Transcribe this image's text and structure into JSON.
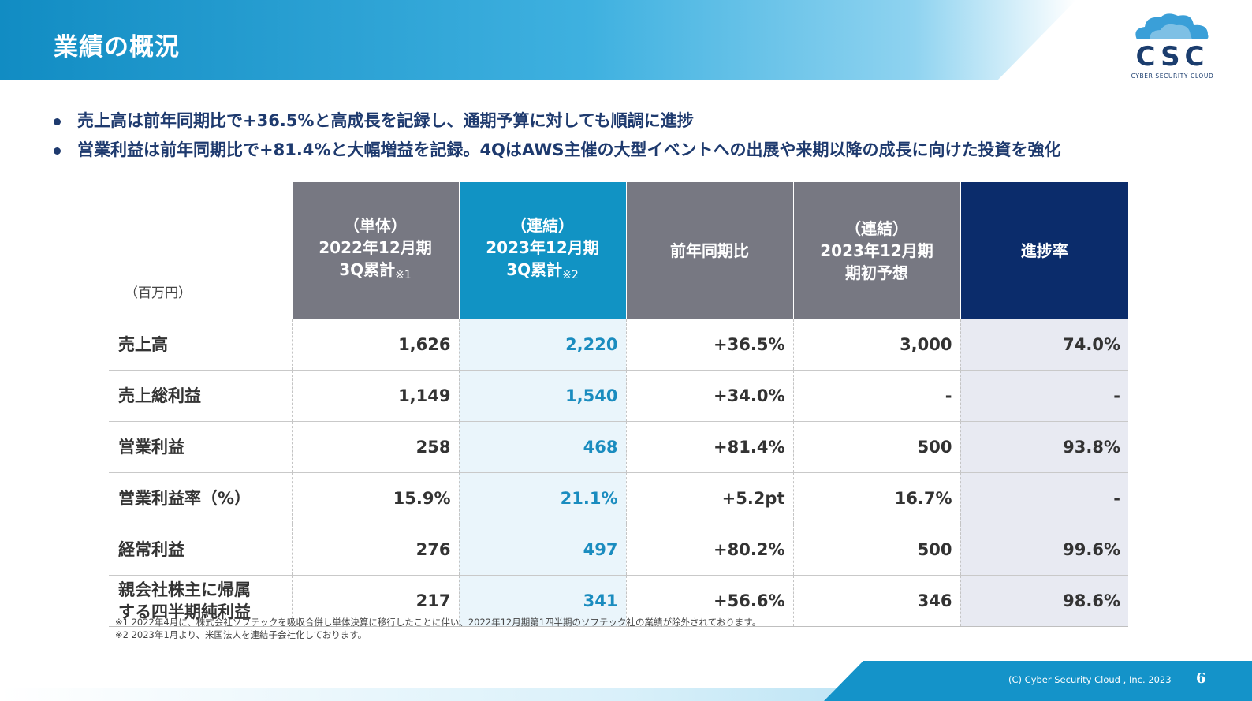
{
  "header": {
    "title": "業績の概況"
  },
  "logo": {
    "letters": "CSC",
    "subtitle": "CYBER SECURITY CLOUD"
  },
  "bullets": [
    "売上高は前年同期比で+36.5%と高成長を記録し、通期予算に対しても順調に進捗",
    "営業利益は前年同期比で+81.4%と大幅増益を記録。4QはAWS主催の大型イベントへの出展や来期以降の成長に向けた投資を強化"
  ],
  "table": {
    "unit": "（百万円）",
    "columns": [
      {
        "line1": "（単体）",
        "line2": "2022年12月期",
        "line3": "3Q累計",
        "note": "※1"
      },
      {
        "line1": "（連結）",
        "line2": "2023年12月期",
        "line3": "3Q累計",
        "note": "※2"
      },
      {
        "line1": "",
        "line2": "前年同期比",
        "line3": "",
        "note": ""
      },
      {
        "line1": "（連結）",
        "line2": "2023年12月期",
        "line3": "期初予想",
        "note": ""
      },
      {
        "line1": "",
        "line2": "進捗率",
        "line3": "",
        "note": ""
      }
    ],
    "rows": [
      {
        "label": "売上高",
        "label2": "",
        "values": [
          "1,626",
          "2,220",
          "+36.5%",
          "3,000",
          "74.0%"
        ]
      },
      {
        "label": "売上総利益",
        "label2": "",
        "values": [
          "1,149",
          "1,540",
          "+34.0%",
          "-",
          "-"
        ]
      },
      {
        "label": "営業利益",
        "label2": "",
        "values": [
          "258",
          "468",
          "+81.4%",
          "500",
          "93.8%"
        ]
      },
      {
        "label": "営業利益率（%）",
        "label2": "",
        "values": [
          "15.9%",
          "21.1%",
          "+5.2pt",
          "16.7%",
          "-"
        ]
      },
      {
        "label": "経常利益",
        "label2": "",
        "values": [
          "276",
          "497",
          "+80.2%",
          "500",
          "99.6%"
        ]
      },
      {
        "label": "親会社株主に帰属",
        "label2": "する四半期純利益",
        "values": [
          "217",
          "341",
          "+56.6%",
          "346",
          "98.6%"
        ]
      }
    ]
  },
  "notes": [
    "※1 2022年4月に、株式会社ソフテックを吸収合併し単体決算に移行したことに伴い、2022年12月期第1四半期のソフテック社の業績が除外されております。",
    "※2 2023年1月より、米国法人を連結子会社化しております。"
  ],
  "footer": {
    "copyright": "(C) Cyber Security Cloud , Inc. 2023",
    "page_number": "6"
  },
  "colors": {
    "header_blue": "#1493c9",
    "navy": "#0b2c6b",
    "gray_header": "#777882",
    "teal_text": "#1a8cbf"
  }
}
